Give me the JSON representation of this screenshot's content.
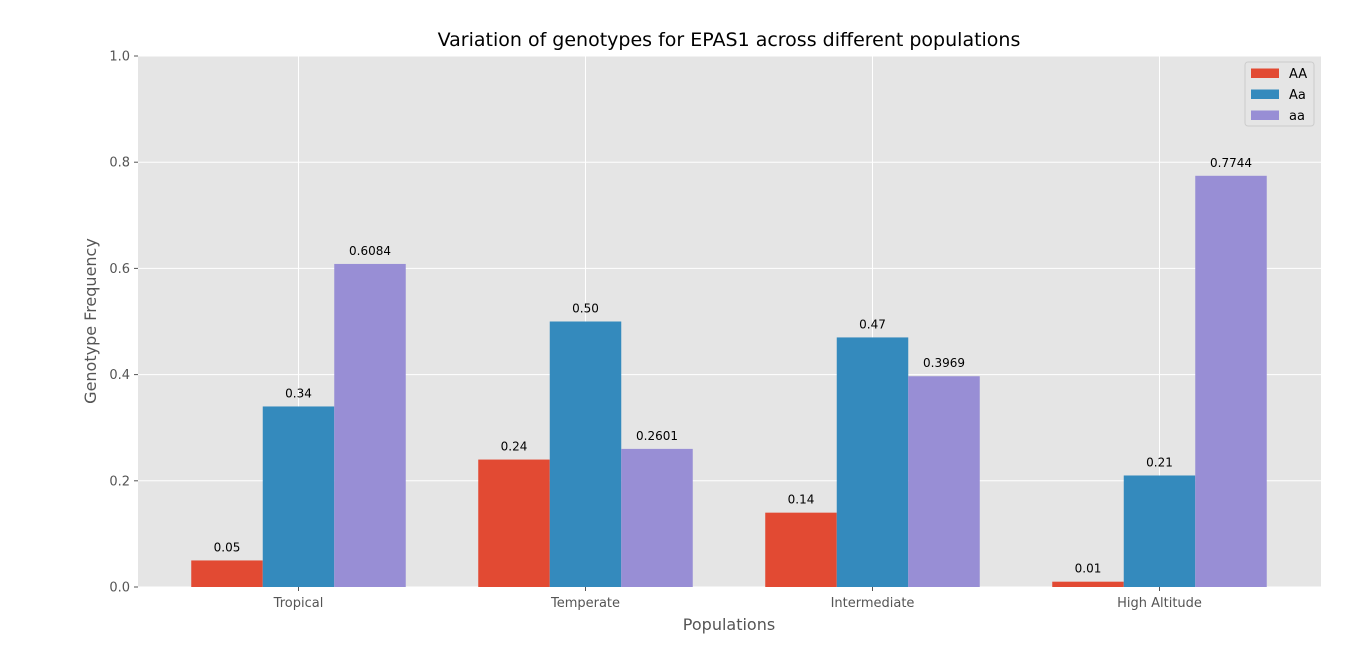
{
  "chart_data": {
    "type": "bar",
    "title": "Variation of genotypes for EPAS1 across different populations",
    "xlabel": "Populations",
    "ylabel": "Genotype Frequency",
    "categories": [
      "Tropical",
      "Temperate",
      "Intermediate",
      "High Altitude"
    ],
    "series": [
      {
        "name": "AA",
        "color": "#E24A33",
        "values": [
          0.05,
          0.24,
          0.14,
          0.01
        ],
        "labels": [
          "0.05",
          "0.24",
          "0.14",
          "0.01"
        ]
      },
      {
        "name": "Aa",
        "color": "#348ABD",
        "values": [
          0.34,
          0.5,
          0.47,
          0.21
        ],
        "labels": [
          "0.34",
          "0.50",
          "0.47",
          "0.21"
        ]
      },
      {
        "name": "aa",
        "color": "#988ED5",
        "values": [
          0.6084,
          0.2601,
          0.3969,
          0.7744
        ],
        "labels": [
          "0.6084",
          "0.2601",
          "0.3969",
          "0.7744"
        ]
      }
    ],
    "ylim": [
      0,
      1.0
    ],
    "yticks": [
      "0.0",
      "0.2",
      "0.4",
      "0.6",
      "0.8",
      "1.0"
    ],
    "grid": true,
    "legend_position": "top-right",
    "background": "#E5E5E5"
  }
}
